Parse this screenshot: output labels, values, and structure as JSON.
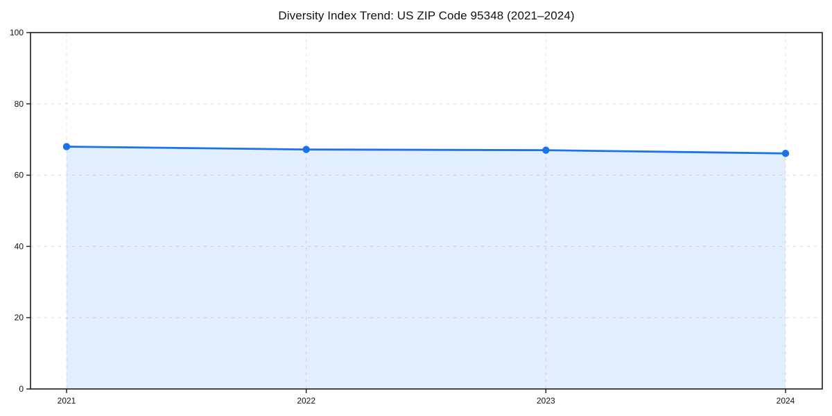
{
  "chart_data": {
    "type": "line",
    "title": "Diversity Index Trend: US ZIP Code 95348 (2021–2024)",
    "xlabel": "",
    "ylabel": "",
    "x": [
      2021,
      2022,
      2023,
      2024
    ],
    "series": [
      {
        "name": "Diversity Index",
        "values": [
          68.0,
          67.2,
          67.0,
          66.1
        ]
      }
    ],
    "ylim": [
      0,
      100
    ],
    "yticks": [
      0,
      20,
      40,
      60,
      80,
      100
    ],
    "grid": true,
    "grid_style": "dashed",
    "legend_position": "none",
    "colors": {
      "line": "#1a73e8",
      "marker": "#1a73e8",
      "area_fill": "#1a73e8",
      "area_fill_opacity": 0.12,
      "grid": "#dcdcdc",
      "axis": "#1a1a1a",
      "background": "#ffffff",
      "title_text": "#111111",
      "tick_text": "#111111"
    }
  }
}
